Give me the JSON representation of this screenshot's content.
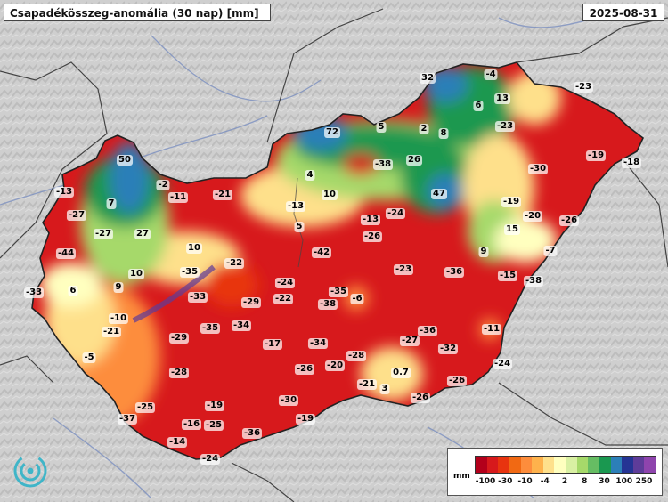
{
  "title": "Csapadékösszeg-anomália (30 nap) [mm]",
  "date": "2025-08-31",
  "legend": {
    "unit": "mm",
    "ticks": [
      "-100",
      "-30",
      "-10",
      "-4",
      "2",
      "8",
      "30",
      "100",
      "250"
    ],
    "colors": [
      "#b3001b",
      "#d7191c",
      "#e8340f",
      "#f16913",
      "#fd8d3c",
      "#feb24c",
      "#fee08b",
      "#ffffbf",
      "#d9f0a3",
      "#a6d96a",
      "#66bd63",
      "#1a9850",
      "#2c7fb8",
      "#253494",
      "#5e3c99",
      "#8e44ad"
    ]
  },
  "anomaly_values": [
    {
      "v": "50"
    },
    {
      "v": "-2"
    },
    {
      "v": "-13"
    },
    {
      "v": "7"
    },
    {
      "v": "-11"
    },
    {
      "v": "-21"
    },
    {
      "v": "-27"
    },
    {
      "v": "-27"
    },
    {
      "v": "27"
    },
    {
      "v": "-44"
    },
    {
      "v": "10"
    },
    {
      "v": "-22"
    },
    {
      "v": "-13"
    },
    {
      "v": "5"
    },
    {
      "v": "-35"
    },
    {
      "v": "10"
    },
    {
      "v": "-33"
    },
    {
      "v": "6"
    },
    {
      "v": "9"
    },
    {
      "v": "-33"
    },
    {
      "v": "-24"
    },
    {
      "v": "-29"
    },
    {
      "v": "-22"
    },
    {
      "v": "-10"
    },
    {
      "v": "-21"
    },
    {
      "v": "-29"
    },
    {
      "v": "-35"
    },
    {
      "v": "-34"
    },
    {
      "v": "-5"
    },
    {
      "v": "-28"
    },
    {
      "v": "-17"
    },
    {
      "v": "-25"
    },
    {
      "v": "-19"
    },
    {
      "v": "-37"
    },
    {
      "v": "-16"
    },
    {
      "v": "-25"
    },
    {
      "v": "-14"
    },
    {
      "v": "-36"
    },
    {
      "v": "-30"
    },
    {
      "v": "-24"
    },
    {
      "v": "-19"
    },
    {
      "v": "32"
    },
    {
      "v": "-4"
    },
    {
      "v": "13"
    },
    {
      "v": "6"
    },
    {
      "v": "72"
    },
    {
      "v": "5"
    },
    {
      "v": "2"
    },
    {
      "v": "8"
    },
    {
      "v": "-23"
    },
    {
      "v": "-23"
    },
    {
      "v": "-38"
    },
    {
      "v": "26"
    },
    {
      "v": "4"
    },
    {
      "v": "10"
    },
    {
      "v": "-30"
    },
    {
      "v": "-19"
    },
    {
      "v": "-18"
    },
    {
      "v": "47"
    },
    {
      "v": "-19"
    },
    {
      "v": "-13"
    },
    {
      "v": "-24"
    },
    {
      "v": "-20"
    },
    {
      "v": "-26"
    },
    {
      "v": "15"
    },
    {
      "v": "-26"
    },
    {
      "v": "-42"
    },
    {
      "v": "-7"
    },
    {
      "v": "9"
    },
    {
      "v": "-23"
    },
    {
      "v": "-36"
    },
    {
      "v": "-15"
    },
    {
      "v": "-38"
    },
    {
      "v": "-35"
    },
    {
      "v": "-6"
    },
    {
      "v": "-38"
    },
    {
      "v": "-34"
    },
    {
      "v": "-36"
    },
    {
      "v": "-27"
    },
    {
      "v": "-11"
    },
    {
      "v": "-32"
    },
    {
      "v": "-26"
    },
    {
      "v": "-20"
    },
    {
      "v": "-28"
    },
    {
      "v": "0.7"
    },
    {
      "v": "-21"
    },
    {
      "v": "3"
    },
    {
      "v": "-26"
    },
    {
      "v": "-26"
    },
    {
      "v": "-24"
    }
  ]
}
